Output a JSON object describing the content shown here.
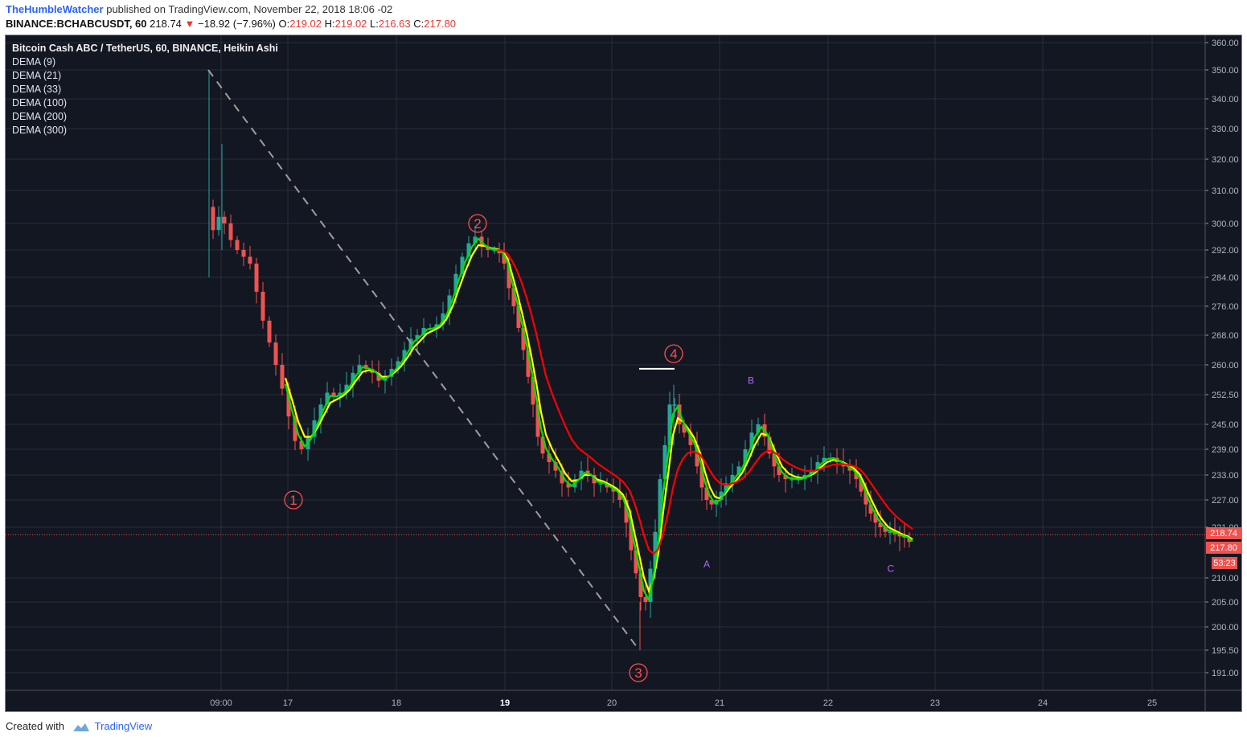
{
  "header": {
    "author": "TheHumbleWatcher",
    "published_text": "published on TradingView.com, November 22, 2018 18:06 -02",
    "symbol": "BINANCE:BCHABCUSDT, 60",
    "last": "218.74",
    "change": "−18.92 (−7.96%)",
    "o_label": "O:",
    "o_val": "219.02",
    "h_label": "H:",
    "h_val": "219.02",
    "l_label": "L:",
    "l_val": "216.63",
    "c_label": "C:",
    "c_val": "217.80"
  },
  "overlay": {
    "title": "Bitcoin Cash ABC / TetherUS, 60, BINANCE, Heikin Ashi",
    "indicators": [
      "DEMA (9)",
      "DEMA (21)",
      "DEMA (33)",
      "DEMA (100)",
      "DEMA (200)",
      "DEMA (300)"
    ]
  },
  "footer": {
    "created_with": "Created with",
    "brand": "TradingView"
  },
  "colors": {
    "background": "#131722",
    "grid": "#2a2e39",
    "up": "#26a69a",
    "down": "#ef5350",
    "dema_fast": "#00e000",
    "dema_mid": "#ffff00",
    "dema_slow": "#ff0000",
    "annotation": "#ff4d4d",
    "abc": "#b366ff",
    "trendline": "#9e9e9e"
  },
  "chart_data": {
    "type": "candlestick",
    "style": "Heikin Ashi",
    "y_ticks": [
      "360.00",
      "350.00",
      "340.00",
      "330.00",
      "320.00",
      "310.00",
      "300.00",
      "292.00",
      "284.00",
      "276.00",
      "268.00",
      "260.00",
      "252.50",
      "245.00",
      "239.00",
      "233.00",
      "227.00",
      "221.00",
      "210.00",
      "205.00",
      "200.00",
      "195.50",
      "191.00"
    ],
    "x_ticks": [
      "09:00",
      "17",
      "18",
      "19",
      "20",
      "21",
      "22",
      "23",
      "24",
      "25"
    ],
    "price_tags": [
      {
        "label": "218.74",
        "color": "#ef5350"
      },
      {
        "label": "217.80",
        "color": "#ef5350"
      },
      {
        "label": "53:23",
        "color": "#ef5350"
      }
    ],
    "last_price": 217.8,
    "wave_labels": [
      {
        "label": "1",
        "price": 227
      },
      {
        "label": "2",
        "price": 300
      },
      {
        "label": "3",
        "price": 191
      },
      {
        "label": "4",
        "price": 263
      }
    ],
    "abc_labels": [
      {
        "label": "A",
        "price": 213
      },
      {
        "label": "B",
        "price": 256
      },
      {
        "label": "C",
        "price": 212
      }
    ],
    "series": [
      {
        "name": "DEMA (9)"
      },
      {
        "name": "DEMA (21)"
      },
      {
        "name": "DEMA (100)"
      }
    ],
    "grid": true
  }
}
